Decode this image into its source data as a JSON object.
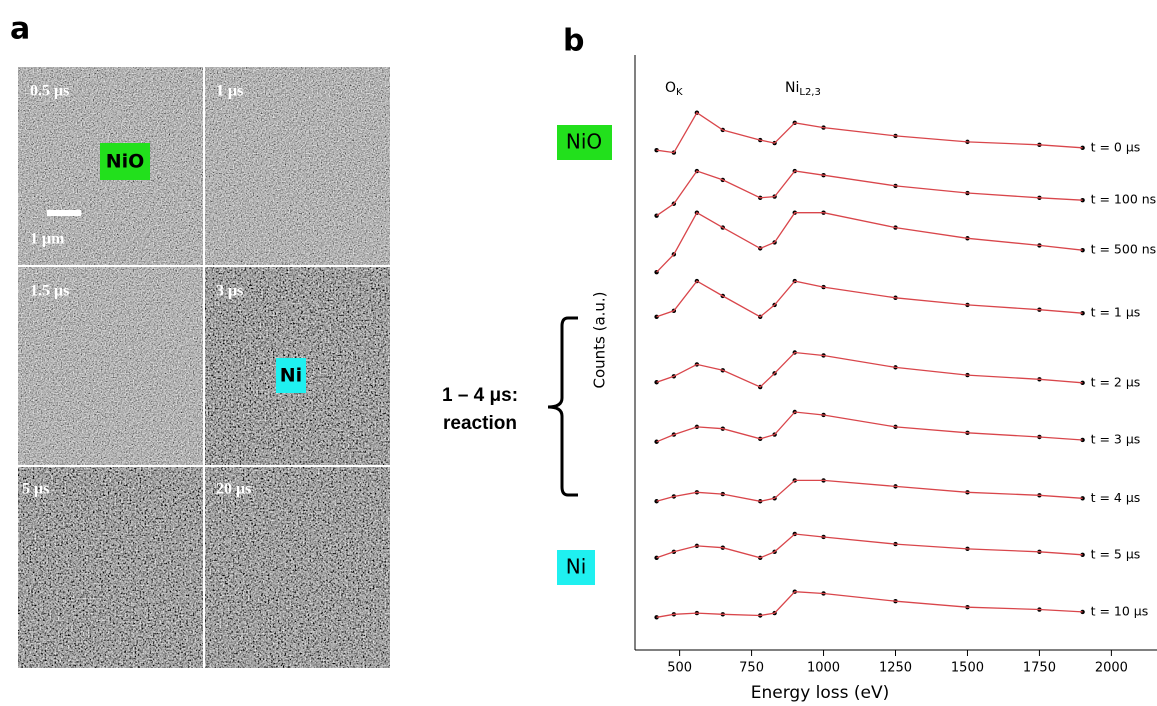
{
  "panel_a": {
    "label": "a",
    "tiles": [
      {
        "label": "0.5 μs"
      },
      {
        "label": "1 μs"
      },
      {
        "label": "1.5 μs"
      },
      {
        "label": "3 μs"
      },
      {
        "label": "5 μs"
      },
      {
        "label": "20 μs"
      }
    ],
    "nio_tag": "NiO",
    "ni_tag": "Ni",
    "scale_label": "1 μm"
  },
  "panel_b": {
    "label": "b",
    "nio_label": "NiO",
    "ni_label": "Ni",
    "bracket_label": [
      "1 – 4 μs:",
      "reaction"
    ],
    "peaks": [
      {
        "main": "O",
        "sub": "K"
      },
      {
        "main": "Ni",
        "sub": "L2,3"
      }
    ]
  },
  "chart_data": {
    "type": "line",
    "x_label": "Energy loss (eV)",
    "y_label": "Counts (a.u.)",
    "xlim": [
      345,
      2155
    ],
    "xticks": [
      500,
      750,
      1000,
      1250,
      1500,
      1750,
      2000
    ],
    "ylim": [
      0,
      10
    ],
    "x": [
      420,
      480,
      560,
      650,
      780,
      830,
      900,
      1000,
      1250,
      1500,
      1750,
      1900
    ],
    "series": [
      {
        "name": "t = 0 μs",
        "color": "#d9464b",
        "values": [
          8.4,
          8.36,
          9.03,
          8.74,
          8.57,
          8.52,
          8.86,
          8.78,
          8.64,
          8.54,
          8.49,
          8.44
        ]
      },
      {
        "name": "t = 100 ns",
        "color": "#d9464b",
        "values": [
          7.3,
          7.5,
          8.05,
          7.9,
          7.6,
          7.62,
          8.05,
          7.98,
          7.8,
          7.68,
          7.6,
          7.56
        ]
      },
      {
        "name": "t = 500 ns",
        "color": "#d9464b",
        "values": [
          6.35,
          6.65,
          7.35,
          7.1,
          6.75,
          6.85,
          7.35,
          7.35,
          7.1,
          6.92,
          6.8,
          6.72
        ]
      },
      {
        "name": "t = 1 μs",
        "color": "#d9464b",
        "values": [
          5.6,
          5.7,
          6.2,
          5.95,
          5.6,
          5.8,
          6.2,
          6.1,
          5.92,
          5.8,
          5.72,
          5.66
        ]
      },
      {
        "name": "t = 2 μs",
        "color": "#d9464b",
        "values": [
          4.5,
          4.6,
          4.8,
          4.7,
          4.42,
          4.65,
          5.0,
          4.95,
          4.75,
          4.62,
          4.55,
          4.49
        ]
      },
      {
        "name": "t = 3 μs",
        "color": "#d9464b",
        "values": [
          3.5,
          3.62,
          3.75,
          3.72,
          3.55,
          3.62,
          4.0,
          3.95,
          3.75,
          3.65,
          3.58,
          3.53
        ]
      },
      {
        "name": "t = 4 μs",
        "color": "#d9464b",
        "values": [
          2.5,
          2.58,
          2.65,
          2.62,
          2.5,
          2.55,
          2.85,
          2.85,
          2.75,
          2.65,
          2.6,
          2.55
        ]
      },
      {
        "name": "t = 5 μs",
        "color": "#d9464b",
        "values": [
          1.55,
          1.65,
          1.75,
          1.72,
          1.55,
          1.65,
          1.95,
          1.9,
          1.78,
          1.7,
          1.65,
          1.6
        ]
      },
      {
        "name": "t = 10 μs",
        "color": "#d9464b",
        "values": [
          0.55,
          0.6,
          0.62,
          0.6,
          0.58,
          0.62,
          0.98,
          0.95,
          0.82,
          0.72,
          0.68,
          0.64
        ]
      }
    ]
  }
}
